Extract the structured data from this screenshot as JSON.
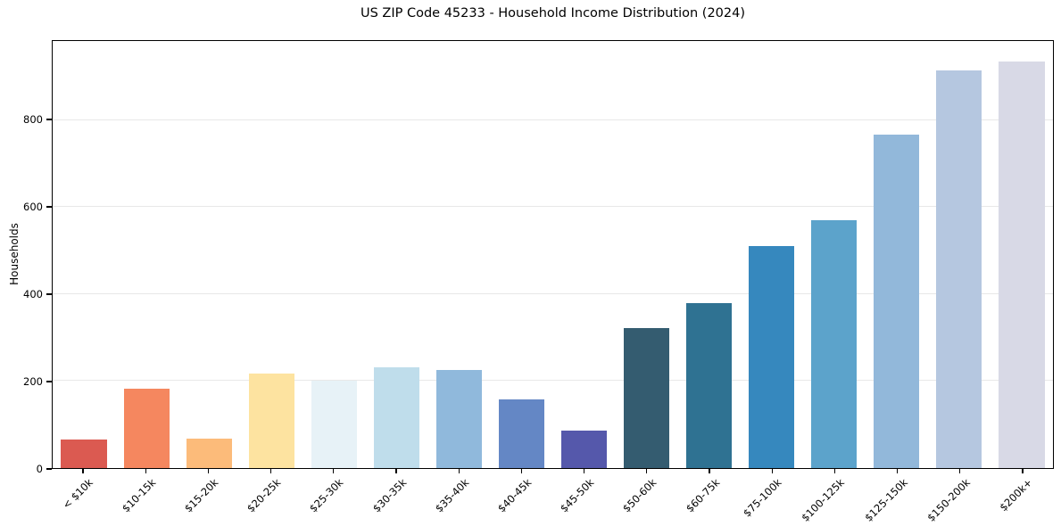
{
  "title": "US ZIP Code 45233 - Household Income Distribution (2024)",
  "chart_data": {
    "type": "bar",
    "title": "US ZIP Code 45233 - Household Income Distribution (2024)",
    "xlabel": "",
    "ylabel": "Households",
    "categories": [
      "< $10k",
      "$10-15k",
      "$15-20k",
      "$20-25k",
      "$25-30k",
      "$30-35k",
      "$35-40k",
      "$40-45k",
      "$45-50k",
      "$50-60k",
      "$60-75k",
      "$75-100k",
      "$100-125k",
      "$125-150k",
      "$150-200k",
      "$200k+"
    ],
    "values": [
      65,
      183,
      68,
      218,
      200,
      232,
      226,
      158,
      87,
      322,
      379,
      511,
      569,
      767,
      914,
      935
    ],
    "bar_colors": [
      "#db5a51",
      "#f5875f",
      "#fcbb7a",
      "#fde3a0",
      "#e7f2f7",
      "#bfddeb",
      "#90b9dc",
      "#6487c5",
      "#5558ab",
      "#345c70",
      "#2f7292",
      "#3688be",
      "#5ca3cb",
      "#92b8da",
      "#b5c7e0",
      "#d8d9e6"
    ],
    "yticks": [
      0,
      200,
      400,
      600,
      800
    ],
    "ylim": [
      0,
      982
    ],
    "grid": "horizontal",
    "legend": "none",
    "background_color": "#ffffff",
    "spine_color": "#000000",
    "gridline_color": "#e8e8e8"
  }
}
